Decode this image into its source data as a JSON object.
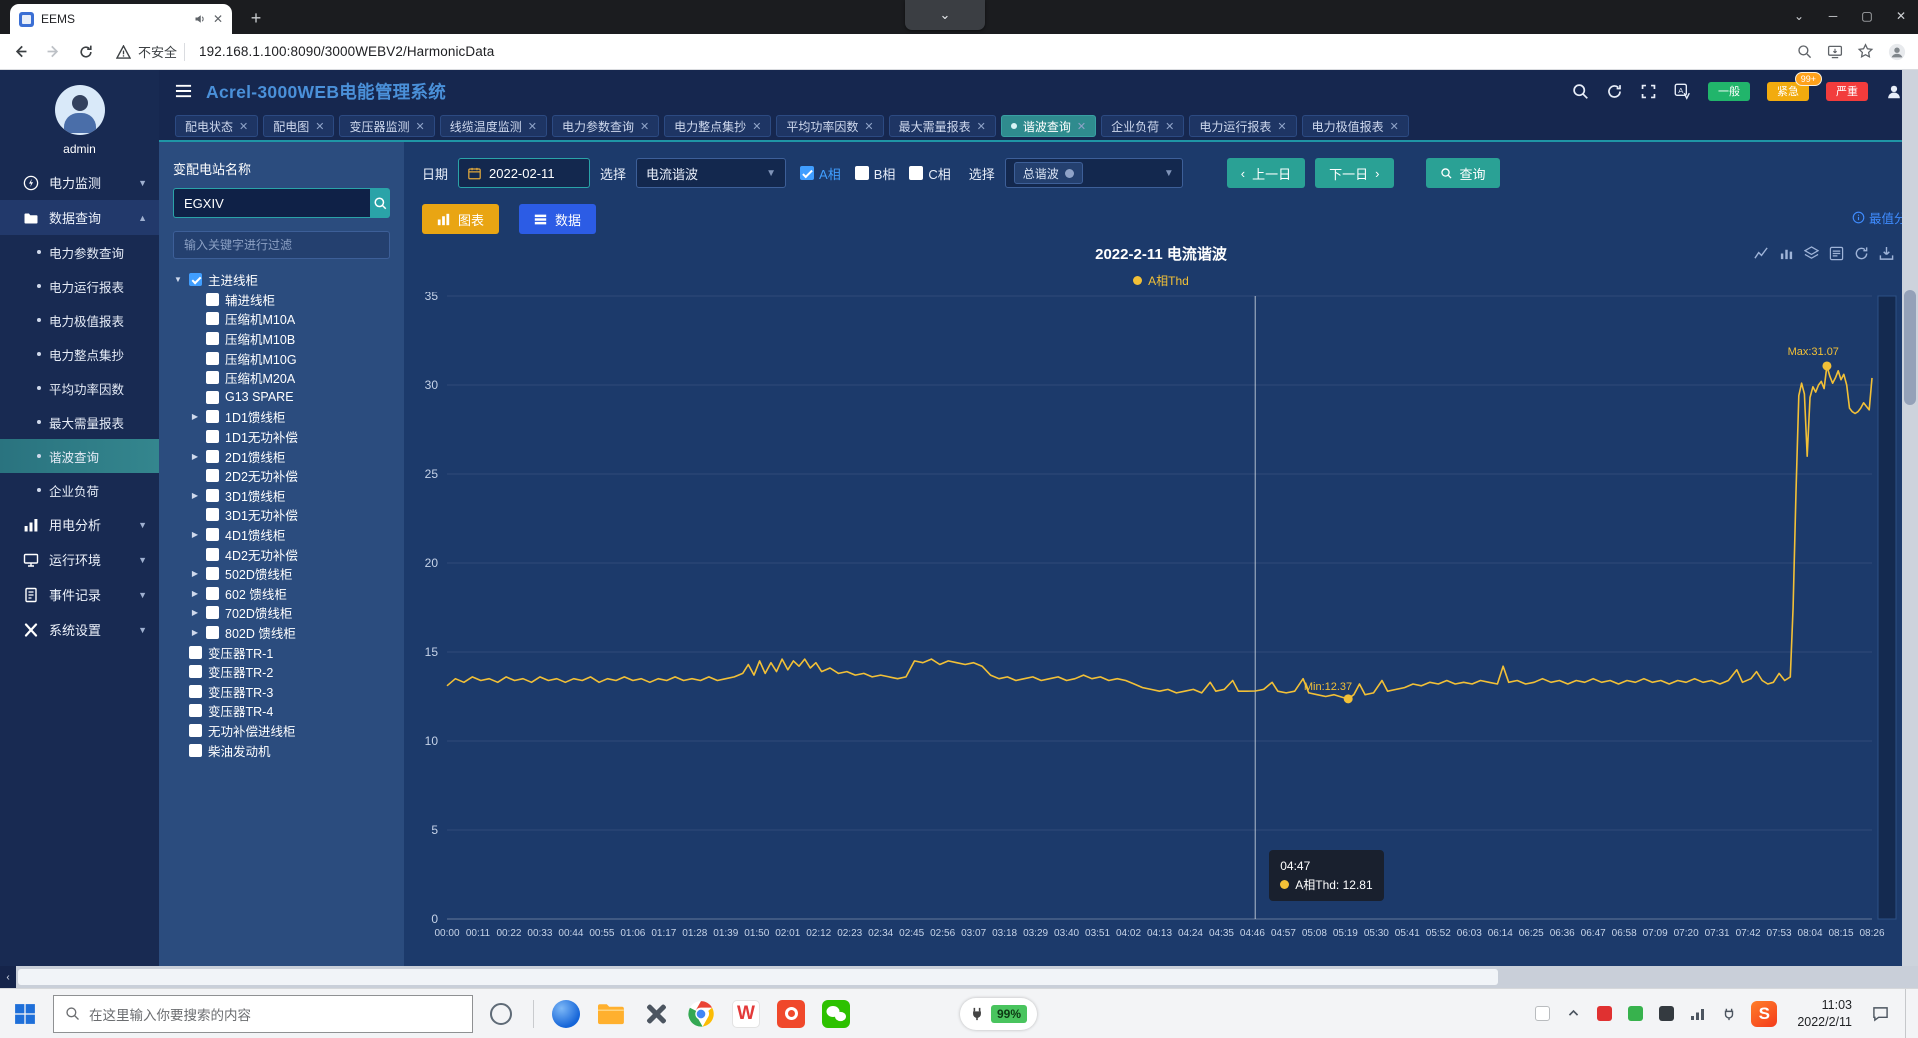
{
  "browser": {
    "tab_title": "EEMS",
    "security_label": "不安全",
    "url": "192.168.1.100:8090/3000WEBV2/HarmonicData"
  },
  "app_header": {
    "title": "Acrel-3000WEB电能管理系统",
    "alarm_general": "一般",
    "alarm_urgent": "紧急",
    "alarm_urgent_badge": "99+",
    "alarm_severe": "严重"
  },
  "nav_tabs": [
    {
      "label": "配电状态",
      "active": false
    },
    {
      "label": "配电图",
      "active": false
    },
    {
      "label": "变压器监测",
      "active": false
    },
    {
      "label": "线缆温度监测",
      "active": false
    },
    {
      "label": "电力参数查询",
      "active": false
    },
    {
      "label": "电力整点集抄",
      "active": false
    },
    {
      "label": "平均功率因数",
      "active": false
    },
    {
      "label": "最大需量报表",
      "active": false
    },
    {
      "label": "谐波查询",
      "active": true
    },
    {
      "label": "企业负荷",
      "active": false
    },
    {
      "label": "电力运行报表",
      "active": false
    },
    {
      "label": "电力极值报表",
      "active": false
    }
  ],
  "sidebar": {
    "user": "admin",
    "items": [
      {
        "label": "电力监测",
        "icon": "power-monitor-icon",
        "expanded": false,
        "children": []
      },
      {
        "label": "数据查询",
        "icon": "data-query-icon",
        "expanded": true,
        "active": true,
        "children": [
          "电力参数查询",
          "电力运行报表",
          "电力极值报表",
          "电力整点集抄",
          "平均功率因数",
          "最大需量报表",
          "谐波查询",
          "企业负荷"
        ],
        "active_child": "谐波查询"
      },
      {
        "label": "用电分析",
        "icon": "analysis-icon",
        "expanded": false,
        "children": []
      },
      {
        "label": "运行环境",
        "icon": "environment-icon",
        "expanded": false,
        "children": []
      },
      {
        "label": "事件记录",
        "icon": "events-icon",
        "expanded": false,
        "children": []
      },
      {
        "label": "系统设置",
        "icon": "settings-icon",
        "expanded": false,
        "children": []
      }
    ]
  },
  "station_panel": {
    "label": "变配电站名称",
    "station_value": "EGXIV",
    "filter_placeholder": "输入关键字进行过滤",
    "tree": [
      {
        "label": "主进线柜",
        "level": 0,
        "checked": true,
        "expander": "open"
      },
      {
        "label": "辅进线柜",
        "level": 1,
        "checked": false,
        "expander": ""
      },
      {
        "label": "压缩机M10A",
        "level": 1,
        "checked": false,
        "expander": ""
      },
      {
        "label": "压缩机M10B",
        "level": 1,
        "checked": false,
        "expander": ""
      },
      {
        "label": "压缩机M10G",
        "level": 1,
        "checked": false,
        "expander": ""
      },
      {
        "label": "压缩机M20A",
        "level": 1,
        "checked": false,
        "expander": ""
      },
      {
        "label": "G13 SPARE",
        "level": 1,
        "checked": false,
        "expander": ""
      },
      {
        "label": "1D1馈线柜",
        "level": 1,
        "checked": false,
        "expander": "closed"
      },
      {
        "label": "1D1无功补偿",
        "level": 1,
        "checked": false,
        "expander": ""
      },
      {
        "label": "2D1馈线柜",
        "level": 1,
        "checked": false,
        "expander": "closed"
      },
      {
        "label": "2D2无功补偿",
        "level": 1,
        "checked": false,
        "expander": ""
      },
      {
        "label": "3D1馈线柜",
        "level": 1,
        "checked": false,
        "expander": "closed"
      },
      {
        "label": "3D1无功补偿",
        "level": 1,
        "checked": false,
        "expander": ""
      },
      {
        "label": "4D1馈线柜",
        "level": 1,
        "checked": false,
        "expander": "closed"
      },
      {
        "label": "4D2无功补偿",
        "level": 1,
        "checked": false,
        "expander": ""
      },
      {
        "label": "502D馈线柜",
        "level": 1,
        "checked": false,
        "expander": "closed"
      },
      {
        "label": "602 馈线柜",
        "level": 1,
        "checked": false,
        "expander": "closed"
      },
      {
        "label": "702D馈线柜",
        "level": 1,
        "checked": false,
        "expander": "closed"
      },
      {
        "label": "802D 馈线柜",
        "level": 1,
        "checked": false,
        "expander": "closed"
      },
      {
        "label": "变压器TR-1",
        "level": 0,
        "checked": false,
        "expander": ""
      },
      {
        "label": "变压器TR-2",
        "level": 0,
        "checked": false,
        "expander": ""
      },
      {
        "label": "变压器TR-3",
        "level": 0,
        "checked": false,
        "expander": ""
      },
      {
        "label": "变压器TR-4",
        "level": 0,
        "checked": false,
        "expander": ""
      },
      {
        "label": "无功补偿进线柜",
        "level": 0,
        "checked": false,
        "expander": ""
      },
      {
        "label": "柴油发动机",
        "level": 0,
        "checked": false,
        "expander": ""
      }
    ]
  },
  "filter_bar": {
    "date_label": "日期",
    "date_value": "2022-02-11",
    "select_label": "选择",
    "harmonic_type": "电流谐波",
    "phase_a": "A相",
    "phase_b": "B相",
    "phase_c": "C相",
    "select2_label": "选择",
    "harmonic_order_tag": "总谐波",
    "prev_day": "上一日",
    "next_day": "下一日",
    "query": "查询"
  },
  "view_toggle": {
    "chart": "图表",
    "data": "数据",
    "extreme_link": "最值分"
  },
  "chart_data": {
    "type": "line",
    "title": "2022-2-11 电流谐波",
    "legend": [
      "A相Thd"
    ],
    "series_color": "#f2c037",
    "ylim": [
      0,
      35
    ],
    "ytick_step": 5,
    "total_minutes": 506,
    "grid": true,
    "legend_position": "top",
    "x_labels": [
      "00:00",
      "00:11",
      "00:22",
      "00:33",
      "00:44",
      "00:55",
      "01:06",
      "01:17",
      "01:28",
      "01:39",
      "01:50",
      "02:01",
      "02:12",
      "02:23",
      "02:34",
      "02:45",
      "02:56",
      "03:07",
      "03:18",
      "03:29",
      "03:40",
      "03:51",
      "04:02",
      "04:13",
      "04:24",
      "04:35",
      "04:46",
      "04:57",
      "05:08",
      "05:19",
      "05:30",
      "05:41",
      "05:52",
      "06:03",
      "06:14",
      "06:25",
      "06:36",
      "06:47",
      "06:58",
      "07:09",
      "07:20",
      "07:31",
      "07:42",
      "07:53",
      "08:04",
      "08:15",
      "08:26"
    ],
    "series": [
      {
        "name": "A相Thd",
        "points": [
          [
            0,
            13.1
          ],
          [
            3,
            13.5
          ],
          [
            6,
            13.3
          ],
          [
            9,
            13.6
          ],
          [
            12,
            13.4
          ],
          [
            15,
            13.5
          ],
          [
            18,
            13.3
          ],
          [
            21,
            13.6
          ],
          [
            24,
            13.4
          ],
          [
            27,
            13.5
          ],
          [
            30,
            13.3
          ],
          [
            33,
            13.6
          ],
          [
            36,
            13.4
          ],
          [
            39,
            13.5
          ],
          [
            42,
            13.3
          ],
          [
            45,
            13.5
          ],
          [
            48,
            13.4
          ],
          [
            51,
            13.6
          ],
          [
            54,
            13.3
          ],
          [
            57,
            13.5
          ],
          [
            60,
            13.4
          ],
          [
            63,
            13.6
          ],
          [
            66,
            13.4
          ],
          [
            69,
            13.5
          ],
          [
            72,
            13.3
          ],
          [
            75,
            13.5
          ],
          [
            78,
            13.4
          ],
          [
            81,
            13.6
          ],
          [
            84,
            13.4
          ],
          [
            87,
            13.5
          ],
          [
            90,
            13.4
          ],
          [
            93,
            13.6
          ],
          [
            96,
            13.4
          ],
          [
            99,
            13.5
          ],
          [
            102,
            13.6
          ],
          [
            105,
            13.8
          ],
          [
            107,
            14.3
          ],
          [
            109,
            13.7
          ],
          [
            111,
            14.5
          ],
          [
            113,
            13.8
          ],
          [
            115,
            14.4
          ],
          [
            117,
            13.9
          ],
          [
            119,
            14.6
          ],
          [
            121,
            14.0
          ],
          [
            123,
            14.5
          ],
          [
            125,
            14.2
          ],
          [
            127,
            14.6
          ],
          [
            129,
            14.1
          ],
          [
            131,
            14.4
          ],
          [
            133,
            13.9
          ],
          [
            136,
            14.1
          ],
          [
            139,
            13.8
          ],
          [
            142,
            13.9
          ],
          [
            145,
            13.7
          ],
          [
            148,
            13.8
          ],
          [
            151,
            13.6
          ],
          [
            154,
            13.7
          ],
          [
            157,
            13.6
          ],
          [
            160,
            13.5
          ],
          [
            163,
            13.6
          ],
          [
            166,
            14.5
          ],
          [
            169,
            14.4
          ],
          [
            172,
            14.6
          ],
          [
            175,
            14.3
          ],
          [
            178,
            14.5
          ],
          [
            181,
            14.4
          ],
          [
            184,
            14.3
          ],
          [
            187,
            14.4
          ],
          [
            190,
            14.2
          ],
          [
            193,
            13.7
          ],
          [
            196,
            13.5
          ],
          [
            199,
            13.6
          ],
          [
            202,
            13.4
          ],
          [
            205,
            13.5
          ],
          [
            208,
            13.6
          ],
          [
            211,
            13.4
          ],
          [
            214,
            13.5
          ],
          [
            217,
            13.6
          ],
          [
            220,
            13.4
          ],
          [
            223,
            13.5
          ],
          [
            226,
            13.7
          ],
          [
            229,
            13.5
          ],
          [
            232,
            13.6
          ],
          [
            235,
            13.4
          ],
          [
            238,
            13.5
          ],
          [
            241,
            13.4
          ],
          [
            244,
            13.2
          ],
          [
            247,
            13.0
          ],
          [
            250,
            12.9
          ],
          [
            253,
            12.8
          ],
          [
            256,
            12.9
          ],
          [
            259,
            12.7
          ],
          [
            262,
            12.8
          ],
          [
            265,
            12.9
          ],
          [
            268,
            12.7
          ],
          [
            271,
            13.3
          ],
          [
            273,
            12.8
          ],
          [
            276,
            12.9
          ],
          [
            279,
            13.4
          ],
          [
            281,
            12.8
          ],
          [
            284,
            12.8
          ],
          [
            287,
            12.81
          ],
          [
            290,
            12.9
          ],
          [
            293,
            13.3
          ],
          [
            295,
            12.8
          ],
          [
            298,
            12.7
          ],
          [
            301,
            12.8
          ],
          [
            304,
            13.5
          ],
          [
            306,
            12.7
          ],
          [
            309,
            12.6
          ],
          [
            312,
            12.5
          ],
          [
            315,
            12.6
          ],
          [
            318,
            12.45
          ],
          [
            320,
            12.37
          ],
          [
            322,
            12.6
          ],
          [
            324,
            13.2
          ],
          [
            326,
            12.6
          ],
          [
            329,
            12.7
          ],
          [
            332,
            13.4
          ],
          [
            334,
            12.8
          ],
          [
            337,
            12.9
          ],
          [
            340,
            13.0
          ],
          [
            343,
            13.2
          ],
          [
            346,
            13.1
          ],
          [
            349,
            13.3
          ],
          [
            352,
            13.2
          ],
          [
            355,
            13.4
          ],
          [
            358,
            13.2
          ],
          [
            361,
            13.3
          ],
          [
            364,
            13.2
          ],
          [
            367,
            13.4
          ],
          [
            370,
            13.3
          ],
          [
            373,
            13.2
          ],
          [
            375,
            14.2
          ],
          [
            377,
            13.3
          ],
          [
            380,
            13.4
          ],
          [
            383,
            13.2
          ],
          [
            386,
            13.3
          ],
          [
            389,
            13.5
          ],
          [
            392,
            13.3
          ],
          [
            395,
            13.4
          ],
          [
            398,
            13.2
          ],
          [
            401,
            13.4
          ],
          [
            404,
            13.3
          ],
          [
            407,
            13.5
          ],
          [
            410,
            13.3
          ],
          [
            413,
            13.4
          ],
          [
            416,
            13.2
          ],
          [
            419,
            13.4
          ],
          [
            422,
            13.3
          ],
          [
            425,
            13.5
          ],
          [
            428,
            13.3
          ],
          [
            431,
            13.4
          ],
          [
            434,
            13.2
          ],
          [
            437,
            13.4
          ],
          [
            440,
            13.3
          ],
          [
            443,
            13.5
          ],
          [
            446,
            13.3
          ],
          [
            449,
            13.4
          ],
          [
            452,
            13.2
          ],
          [
            455,
            13.4
          ],
          [
            458,
            14.0
          ],
          [
            460,
            13.3
          ],
          [
            463,
            13.5
          ],
          [
            465,
            13.9
          ],
          [
            467,
            13.4
          ],
          [
            469,
            13.2
          ],
          [
            471,
            13.3
          ],
          [
            473,
            13.8
          ],
          [
            475,
            13.4
          ],
          [
            477,
            13.6
          ],
          [
            478,
            17.5
          ],
          [
            479,
            24.0
          ],
          [
            480,
            29.4
          ],
          [
            481,
            30.1
          ],
          [
            482,
            29.5
          ],
          [
            483,
            26.0
          ],
          [
            484,
            29.3
          ],
          [
            485,
            29.9
          ],
          [
            486,
            29.6
          ],
          [
            487,
            30.0
          ],
          [
            488,
            30.2
          ],
          [
            489,
            29.8
          ],
          [
            490,
            31.07
          ],
          [
            491,
            30.5
          ],
          [
            492,
            30.1
          ],
          [
            493,
            30.4
          ],
          [
            494,
            30.8
          ],
          [
            495,
            30.3
          ],
          [
            496,
            30.6
          ],
          [
            497,
            30.0
          ],
          [
            498,
            28.7
          ],
          [
            499,
            28.5
          ],
          [
            500,
            28.4
          ],
          [
            501,
            28.5
          ],
          [
            502,
            28.7
          ],
          [
            503,
            29.0
          ],
          [
            504,
            28.8
          ],
          [
            505,
            28.6
          ],
          [
            506,
            30.4
          ]
        ]
      }
    ],
    "markers": {
      "max": {
        "label": "Max:31.07",
        "minute": 490,
        "value": 31.07
      },
      "min": {
        "label": "Min:12.37",
        "minute": 320,
        "value": 12.37
      }
    },
    "crosshair_minute": 287,
    "tooltip": {
      "time": "04:47",
      "series": "A相Thd",
      "value": "12.81"
    }
  },
  "taskbar": {
    "search_placeholder": "在这里输入你要搜索的内容",
    "battery": "99%",
    "time": "11:03",
    "date": "2022/2/11"
  }
}
